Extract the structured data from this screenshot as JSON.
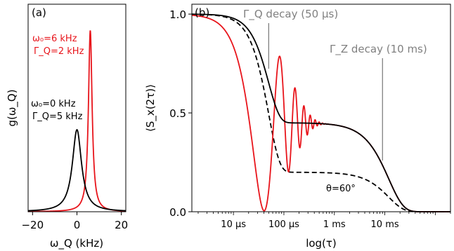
{
  "chart_data": [
    {
      "panel_label": "(a)",
      "type": "line",
      "xlabel": "ω_Q (kHz)",
      "ylabel": "g(ω_Q)",
      "xlim": [
        -22,
        22
      ],
      "ylim": [
        0,
        1.05
      ],
      "x_ticks": [
        -20,
        0,
        20
      ],
      "x_tick_labels": [
        "−20",
        "0",
        "20"
      ],
      "grid": false,
      "series": [
        {
          "omega0_khz": 6,
          "gammaQ_khz": 2,
          "color": "#e8141b",
          "annotation": {
            "line1": "ω₀=6 kHz",
            "line2": "Γ_Q=2 kHz"
          }
        },
        {
          "omega0_khz": 0,
          "gammaQ_khz": 5,
          "color": "#000000",
          "annotation": {
            "line1": "ω₀=0 kHz",
            "line2": "Γ_Q=5 kHz"
          }
        }
      ]
    },
    {
      "panel_label": "(b)",
      "type": "line",
      "xlabel": "log(τ)",
      "ylabel": "⟨S_x(2τ)⟩",
      "x_scale": "log",
      "xlim_s": [
        1.5e-06,
        0.2
      ],
      "ylim": [
        0,
        1.05
      ],
      "x_ticks_s": [
        1e-05,
        0.0001,
        0.001,
        0.01
      ],
      "x_tick_labels": [
        "10 μs",
        "100 μs",
        "1 ms",
        "10 ms"
      ],
      "y_ticks": [
        0,
        0.5,
        1
      ],
      "y_tick_labels": [
        "0.0",
        "0.5",
        "1.0"
      ],
      "grid": false,
      "annotations": {
        "gammaQ_text": "Γ_Q decay (50 μs)",
        "gammaQ_tau_s": 5e-05,
        "gammaZ_text": "Γ_Z decay (10 ms)",
        "gammaZ_tau_s": 0.009,
        "theta_text": "θ=60°"
      },
      "series": [
        {
          "id": "red",
          "color": "#e8141b",
          "style": "solid"
        },
        {
          "id": "black",
          "color": "#000000",
          "style": "solid"
        },
        {
          "id": "dashed",
          "color": "#000000",
          "style": "dashed"
        }
      ]
    }
  ]
}
